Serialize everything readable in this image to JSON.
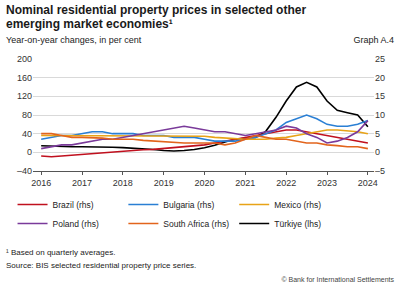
{
  "chart_data": {
    "type": "line",
    "title": "Nominal residential property prices in selected other emerging market economies¹",
    "subtitle": "Year-on-year changes, in per cent",
    "graph_label": "Graph A.4",
    "footnote": "¹ Based on quarterly averages.",
    "source": "Source: BIS selected residential property price series.",
    "credit": "© Bank for International Settlements",
    "x": [
      2016,
      2016.25,
      2016.5,
      2016.75,
      2017,
      2017.25,
      2017.5,
      2017.75,
      2018,
      2018.25,
      2018.5,
      2018.75,
      2019,
      2019.25,
      2019.5,
      2019.75,
      2020,
      2020.25,
      2020.5,
      2020.75,
      2021,
      2021.25,
      2021.5,
      2021.75,
      2022,
      2022.25,
      2022.5,
      2022.75,
      2023,
      2023.25,
      2023.5,
      2023.75,
      2024
    ],
    "xlim": [
      2015.8,
      2024.15
    ],
    "xticks": [
      2016,
      2017,
      2018,
      2019,
      2020,
      2021,
      2022,
      2023,
      2024
    ],
    "ylim": [
      -40,
      200
    ],
    "yticks": [
      {
        "value": -40,
        "label": "–40"
      },
      0,
      40,
      80,
      120,
      160,
      200
    ],
    "y2lim": [
      -5,
      25
    ],
    "y2ticks": [
      {
        "value": -5,
        "label": "–5"
      },
      0,
      5,
      10,
      15,
      20,
      25
    ],
    "grid": true,
    "legend": "bottom",
    "series": [
      {
        "name": "Brazil (rhs)",
        "color": "#c0101e",
        "axis": "y2",
        "values": [
          -1.0,
          -1.2,
          -1.0,
          -0.8,
          -0.5,
          -0.3,
          0,
          0.2,
          0.3,
          0.5,
          0.7,
          0.8,
          1.0,
          1.2,
          1.5,
          1.8,
          2.0,
          2.5,
          3.0,
          3.5,
          4.0,
          4.5,
          5.0,
          5.5,
          6.0,
          6.0,
          5.5,
          5.0,
          4.5,
          4.0,
          3.5,
          3.0,
          2.5
        ]
      },
      {
        "name": "Bulgaria (rhs)",
        "color": "#2a7fd4",
        "axis": "y2",
        "values": [
          3.5,
          4.0,
          4.5,
          4.5,
          5.0,
          5.5,
          5.5,
          5.0,
          5.0,
          5.0,
          4.5,
          4.5,
          4.5,
          4.0,
          4.0,
          4.0,
          3.5,
          3.0,
          3.0,
          3.0,
          3.5,
          4.0,
          5.0,
          6.0,
          8.0,
          9.0,
          10.0,
          9.0,
          7.5,
          7.0,
          7.0,
          7.5,
          8.5
        ]
      },
      {
        "name": "Mexico (rhs)",
        "color": "#e8a317",
        "axis": "y2",
        "values": [
          4.5,
          4.5,
          4.5,
          4.5,
          4.5,
          4.5,
          4.5,
          4.5,
          4.5,
          4.5,
          4.5,
          4.5,
          4.5,
          4.5,
          4.5,
          4.5,
          4.3,
          4.0,
          3.8,
          3.8,
          3.5,
          3.5,
          3.5,
          3.8,
          4.0,
          4.5,
          5.0,
          5.5,
          6.0,
          6.0,
          5.8,
          5.5,
          5.0
        ]
      },
      {
        "name": "Poland (rhs)",
        "color": "#7a3a9a",
        "axis": "y2",
        "values": [
          1.0,
          1.5,
          2.0,
          2.0,
          2.5,
          3.0,
          3.5,
          3.5,
          4.0,
          4.5,
          5.0,
          5.5,
          6.0,
          6.5,
          7.0,
          6.5,
          6.0,
          5.5,
          5.5,
          5.0,
          4.5,
          5.0,
          5.5,
          6.0,
          7.0,
          6.5,
          5.0,
          4.0,
          2.5,
          3.0,
          4.0,
          5.5,
          8.5
        ]
      },
      {
        "name": "South Africa (rhs)",
        "color": "#e2641c",
        "axis": "y2",
        "values": [
          5.0,
          5.0,
          4.5,
          4.0,
          4.0,
          4.0,
          3.8,
          3.5,
          3.5,
          3.5,
          3.2,
          3.0,
          3.0,
          2.8,
          2.5,
          2.5,
          2.5,
          2.5,
          2.0,
          2.5,
          3.5,
          4.5,
          4.0,
          3.5,
          3.5,
          3.0,
          2.5,
          2.5,
          2.0,
          1.8,
          1.5,
          1.5,
          1.0
        ]
      },
      {
        "name": "Türkiye (lhs)",
        "color": "#000000",
        "axis": "y",
        "values": [
          14,
          13,
          12,
          12,
          12,
          12,
          11,
          11,
          10,
          9,
          8,
          6,
          4,
          3,
          4,
          6,
          10,
          15,
          22,
          28,
          30,
          32,
          45,
          75,
          110,
          140,
          150,
          140,
          110,
          90,
          85,
          80,
          55
        ]
      }
    ]
  }
}
